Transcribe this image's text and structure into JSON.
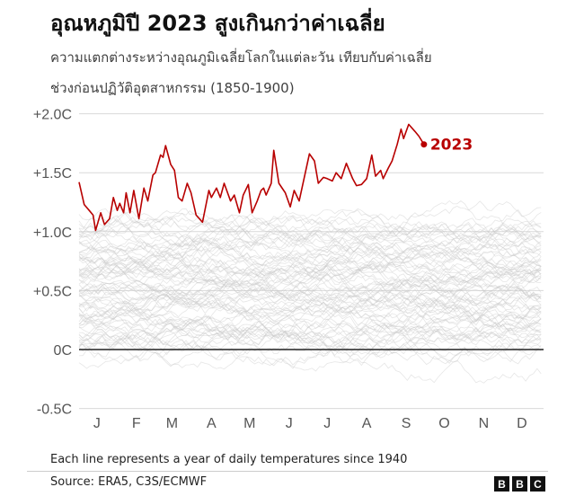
{
  "chart_data": {
    "type": "line",
    "title": "อุณหภูมิปี 2023 สูงเกินกว่าค่าเฉลี่ย",
    "subtitle_line1": "ความแตกต่างระหว่างอุณภูมิเฉลี่ยโลกในแต่ละวัน เทียบกับค่าเฉลี่ย",
    "subtitle_line2": "ช่วงก่อนปฏิวัติอุตสาหกรรม (1850-1900)",
    "xlabel": "",
    "ylabel": "",
    "x_tick_labels": [
      "J",
      "F",
      "M",
      "A",
      "M",
      "J",
      "J",
      "A",
      "S",
      "O",
      "N",
      "D"
    ],
    "y_ticks": [
      -0.5,
      0,
      0.5,
      1.0,
      1.5,
      2.0
    ],
    "y_tick_labels": [
      "-0.5C",
      "0C",
      "+0.5C",
      "+1.0C",
      "+1.5C",
      "+2.0C"
    ],
    "ylim": [
      -0.5,
      2.0
    ],
    "grid": true,
    "highlight_color": "#b80000",
    "background_series_color": "#c8c8c8",
    "series": [
      {
        "name": "2023",
        "x": [
          "01-01",
          "01-05",
          "01-09",
          "01-12",
          "01-14",
          "01-18",
          "01-21",
          "01-25",
          "01-28",
          "01-31",
          "02-02",
          "02-05",
          "02-07",
          "02-10",
          "02-13",
          "02-17",
          "02-21",
          "02-24",
          "02-28",
          "03-02",
          "03-06",
          "03-08",
          "03-10",
          "03-14",
          "03-17",
          "03-20",
          "03-23",
          "03-27",
          "03-30",
          "04-03",
          "04-08",
          "04-13",
          "04-15",
          "04-19",
          "04-22",
          "04-25",
          "04-30",
          "05-03",
          "05-07",
          "05-10",
          "05-14",
          "05-17",
          "05-21",
          "05-24",
          "05-26",
          "05-28",
          "06-01",
          "06-03",
          "06-07",
          "06-12",
          "06-16",
          "06-19",
          "06-23",
          "07-01",
          "07-05",
          "07-08",
          "07-12",
          "07-15",
          "07-19",
          "07-22",
          "07-26",
          "07-30",
          "08-04",
          "08-07",
          "08-11",
          "08-15",
          "08-19",
          "08-22",
          "08-26",
          "08-28",
          "09-01",
          "09-04",
          "09-08",
          "09-11",
          "09-13",
          "09-17",
          "09-22",
          "09-25",
          "09-29"
        ],
        "values": [
          1.42,
          1.23,
          1.18,
          1.14,
          1.01,
          1.16,
          1.06,
          1.11,
          1.29,
          1.18,
          1.24,
          1.16,
          1.33,
          1.16,
          1.35,
          1.11,
          1.37,
          1.26,
          1.48,
          1.5,
          1.65,
          1.63,
          1.73,
          1.57,
          1.52,
          1.29,
          1.26,
          1.41,
          1.33,
          1.14,
          1.08,
          1.35,
          1.29,
          1.37,
          1.29,
          1.41,
          1.26,
          1.31,
          1.16,
          1.31,
          1.4,
          1.16,
          1.26,
          1.35,
          1.37,
          1.31,
          1.41,
          1.69,
          1.41,
          1.33,
          1.21,
          1.35,
          1.26,
          1.66,
          1.6,
          1.41,
          1.46,
          1.45,
          1.43,
          1.5,
          1.45,
          1.58,
          1.45,
          1.39,
          1.4,
          1.45,
          1.65,
          1.47,
          1.52,
          1.45,
          1.54,
          1.6,
          1.74,
          1.87,
          1.79,
          1.91,
          1.85,
          1.81,
          1.74
        ]
      }
    ],
    "note": "Each line represents a year of daily temperatures since 1940"
  },
  "footer": {
    "source": "Source: ERA5, C3S/ECMWF",
    "logo_letters": [
      "B",
      "B",
      "C"
    ]
  }
}
